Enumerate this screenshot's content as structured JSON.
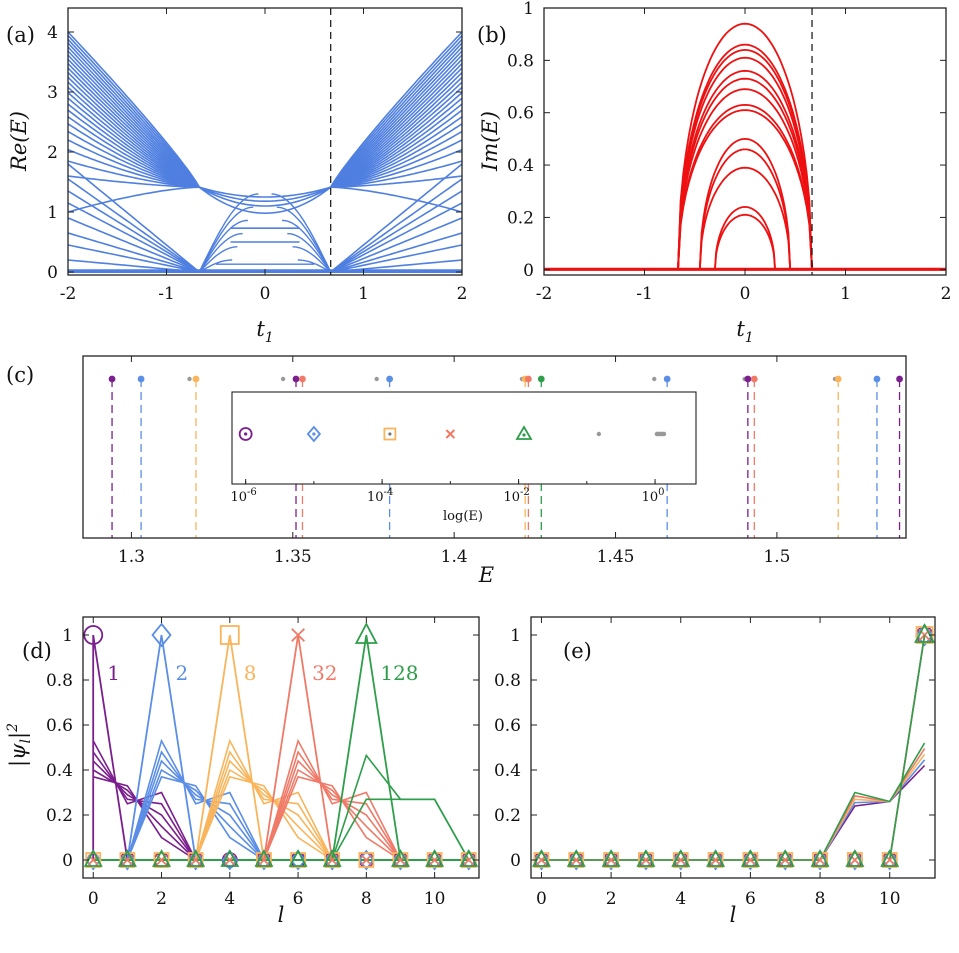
{
  "colors": {
    "blue": "#4f7fe0",
    "red": "#ee1111",
    "purple": "#7b1f8e",
    "lightblue": "#5b8ee6",
    "orange": "#f9b55c",
    "salmon": "#f07a68",
    "green": "#2e9e4a",
    "gray": "#999999",
    "dash": "#111111"
  },
  "chart_data": [
    {
      "panel": "(a)",
      "type": "line",
      "xlabel": "t_1",
      "ylabel": "Re(E)",
      "xlim": [
        -2,
        2
      ],
      "ylim": [
        -0.05,
        4.4
      ],
      "xticks": [
        "-2",
        "-1",
        "0",
        "1",
        "2"
      ],
      "yticks": [
        "0",
        "1",
        "2",
        "3",
        "4"
      ],
      "annotation": "dashed vertical line at t1 ≈ 0.67",
      "series_description": "many blue spectral branches; flat band near 0; branches meet at ≈1.41 near t1 = ±0.67"
    },
    {
      "panel": "(b)",
      "type": "line",
      "xlabel": "t_1",
      "ylabel": "Im(E)",
      "xlim": [
        -2,
        2
      ],
      "ylim": [
        -0.02,
        1
      ],
      "xticks": [
        "-2",
        "-1",
        "0",
        "1",
        "2"
      ],
      "yticks": [
        "0",
        "0.2",
        "0.4",
        "0.6",
        "0.8",
        "1"
      ],
      "arc_peaks": [
        0.94,
        0.86,
        0.84,
        0.81,
        0.76,
        0.73,
        0.69,
        0.63,
        0.61,
        0.5,
        0.46,
        0.39,
        0.24,
        0.21
      ],
      "annotation": "dashed vertical line at t1 ≈ 0.67"
    },
    {
      "panel": "(c)",
      "type": "scatter",
      "xlabel": "E",
      "xlim": [
        1.285,
        1.54
      ],
      "xticks": [
        "1.3",
        "1.35",
        "1.4",
        "1.45",
        "1.5"
      ],
      "points": [
        {
          "x": 1.294,
          "color": "purple"
        },
        {
          "x": 1.303,
          "color": "lightblue"
        },
        {
          "x": 1.318,
          "color": "gray"
        },
        {
          "x": 1.32,
          "color": "orange"
        },
        {
          "x": 1.347,
          "color": "gray"
        },
        {
          "x": 1.351,
          "color": "purple"
        },
        {
          "x": 1.353,
          "color": "salmon"
        },
        {
          "x": 1.38,
          "color": "lightblue"
        },
        {
          "x": 1.376,
          "color": "gray"
        },
        {
          "x": 1.421,
          "color": "gray"
        },
        {
          "x": 1.422,
          "color": "orange"
        },
        {
          "x": 1.423,
          "color": "salmon"
        },
        {
          "x": 1.427,
          "color": "green"
        },
        {
          "x": 1.466,
          "color": "lightblue"
        },
        {
          "x": 1.462,
          "color": "gray"
        },
        {
          "x": 1.49,
          "color": "gray"
        },
        {
          "x": 1.491,
          "color": "purple"
        },
        {
          "x": 1.493,
          "color": "salmon"
        },
        {
          "x": 1.518,
          "color": "gray"
        },
        {
          "x": 1.519,
          "color": "orange"
        },
        {
          "x": 1.531,
          "color": "lightblue"
        },
        {
          "x": 1.538,
          "color": "purple"
        }
      ],
      "inset": {
        "xlabel": "log(E)",
        "xticks": [
          "10^{-6}",
          "10^{-4}",
          "10^{-2}",
          "10^{0}"
        ],
        "markers": [
          {
            "marker": "circle",
            "color": "purple",
            "x": "1e-6"
          },
          {
            "marker": "diamond",
            "color": "lightblue",
            "x": "1e-5"
          },
          {
            "marker": "square",
            "color": "orange",
            "x": "1.3e-4"
          },
          {
            "marker": "cross",
            "color": "salmon",
            "x": "1e-3"
          },
          {
            "marker": "triangle",
            "color": "green",
            "x": "1.2e-2"
          },
          {
            "marker": "dot",
            "color": "gray",
            "x": "0.15"
          },
          {
            "marker": "dot",
            "color": "gray",
            "x": "1.2"
          }
        ]
      }
    },
    {
      "panel": "(d)",
      "type": "line",
      "xlabel": "l",
      "ylabel": "|ψ_l|^2",
      "xlim": [
        -0.3,
        11.3
      ],
      "ylim": [
        -0.08,
        1.08
      ],
      "xticks": [
        "0",
        "2",
        "4",
        "6",
        "8",
        "10"
      ],
      "yticks": [
        "0",
        "0.2",
        "0.4",
        "0.6",
        "0.8",
        "1"
      ],
      "series": [
        {
          "name": "1",
          "color": "purple",
          "peak_site": 0,
          "marker": "circle"
        },
        {
          "name": "2",
          "color": "lightblue",
          "peak_site": 2,
          "marker": "diamond"
        },
        {
          "name": "8",
          "color": "orange",
          "peak_site": 4,
          "marker": "square"
        },
        {
          "name": "32",
          "color": "salmon",
          "peak_site": 6,
          "marker": "cross"
        },
        {
          "name": "128",
          "color": "green",
          "peak_site": 8,
          "marker": "triangle"
        }
      ]
    },
    {
      "panel": "(e)",
      "type": "line",
      "xlabel": "l",
      "xlim": [
        -0.3,
        11.3
      ],
      "ylim": [
        -0.08,
        1.08
      ],
      "xticks": [
        "0",
        "2",
        "4",
        "6",
        "8",
        "10"
      ],
      "yticks": [
        "0",
        "0.2",
        "0.4",
        "0.6",
        "0.8",
        "1"
      ],
      "description": "all states localized at last site l = 11"
    }
  ],
  "labels": {
    "a": "(a)",
    "b": "(b)",
    "c": "(c)",
    "d": "(d)",
    "e": "(e)",
    "re_e": "Re(E)",
    "im_e": "Im(E)",
    "psi": "|ψ",
    "t1": "t",
    "t1sub": "1",
    "E": "E",
    "l": "l",
    "logE": "log(E)",
    "n1": "1",
    "n2": "2",
    "n8": "8",
    "n32": "32",
    "n128": "128"
  }
}
